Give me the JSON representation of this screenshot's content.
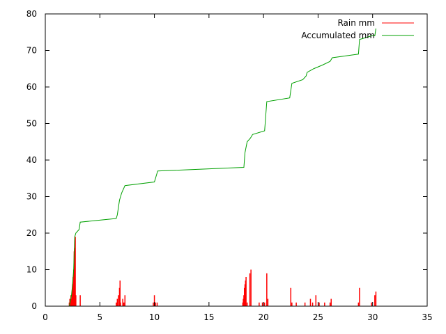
{
  "chart_data": {
    "type": "line",
    "title": "",
    "xlabel": "",
    "ylabel": "",
    "xlim": [
      0,
      35
    ],
    "ylim": [
      0,
      80
    ],
    "x_ticks": [
      0,
      5,
      10,
      15,
      20,
      25,
      30,
      35
    ],
    "y_ticks": [
      0,
      10,
      20,
      30,
      40,
      50,
      60,
      70,
      80
    ],
    "x_tick_labels": [
      "0",
      "5",
      "10",
      "15",
      "20",
      "25",
      "30",
      "35"
    ],
    "y_tick_labels": [
      "0",
      "10",
      "20",
      "30",
      "40",
      "50",
      "60",
      "70",
      "80"
    ],
    "grid": false,
    "legend_position": "top-right",
    "series": [
      {
        "name": "Rain mm",
        "style": "impulses",
        "color": "#ff0000",
        "points": [
          [
            2.2,
            1
          ],
          [
            2.25,
            2
          ],
          [
            2.3,
            1.5
          ],
          [
            2.35,
            3
          ],
          [
            2.4,
            2
          ],
          [
            2.45,
            4
          ],
          [
            2.5,
            6
          ],
          [
            2.55,
            8
          ],
          [
            2.6,
            10
          ],
          [
            2.65,
            15
          ],
          [
            2.7,
            16
          ],
          [
            2.75,
            19
          ],
          [
            2.8,
            3
          ],
          [
            3.2,
            3
          ],
          [
            6.5,
            1
          ],
          [
            6.6,
            2
          ],
          [
            6.7,
            3
          ],
          [
            6.8,
            5
          ],
          [
            6.85,
            7
          ],
          [
            6.9,
            1
          ],
          [
            7.1,
            2
          ],
          [
            7.2,
            1
          ],
          [
            7.3,
            3
          ],
          [
            9.9,
            1
          ],
          [
            10.0,
            3
          ],
          [
            10.1,
            1
          ],
          [
            10.25,
            1
          ],
          [
            18.1,
            1
          ],
          [
            18.15,
            2
          ],
          [
            18.2,
            3
          ],
          [
            18.25,
            5
          ],
          [
            18.3,
            6
          ],
          [
            18.35,
            7
          ],
          [
            18.4,
            8
          ],
          [
            18.5,
            1
          ],
          [
            18.75,
            9
          ],
          [
            18.85,
            10
          ],
          [
            19.6,
            1
          ],
          [
            19.9,
            1
          ],
          [
            20.1,
            1
          ],
          [
            20.3,
            9
          ],
          [
            20.4,
            2
          ],
          [
            22.5,
            5
          ],
          [
            22.6,
            1
          ],
          [
            23.0,
            1
          ],
          [
            23.8,
            1
          ],
          [
            24.3,
            2
          ],
          [
            24.5,
            1
          ],
          [
            24.8,
            3
          ],
          [
            25.1,
            1
          ],
          [
            25.6,
            1
          ],
          [
            26.1,
            1
          ],
          [
            26.2,
            2
          ],
          [
            28.7,
            1
          ],
          [
            28.8,
            5
          ],
          [
            29.9,
            1
          ],
          [
            30.2,
            3
          ],
          [
            30.3,
            4
          ]
        ]
      },
      {
        "name": "Accumulated mm",
        "style": "line",
        "color": "#00a000",
        "points": [
          [
            2.2,
            0
          ],
          [
            2.4,
            3
          ],
          [
            2.5,
            6
          ],
          [
            2.6,
            10
          ],
          [
            2.65,
            15
          ],
          [
            2.7,
            19
          ],
          [
            2.8,
            20
          ],
          [
            3.1,
            21
          ],
          [
            3.2,
            23
          ],
          [
            6.5,
            24
          ],
          [
            6.6,
            25
          ],
          [
            6.8,
            29
          ],
          [
            7.0,
            31
          ],
          [
            7.3,
            33
          ],
          [
            10.0,
            34
          ],
          [
            10.2,
            36
          ],
          [
            10.3,
            37
          ],
          [
            18.2,
            38
          ],
          [
            18.3,
            42
          ],
          [
            18.5,
            45
          ],
          [
            18.8,
            46
          ],
          [
            19.0,
            47
          ],
          [
            20.1,
            48
          ],
          [
            20.3,
            56
          ],
          [
            22.4,
            57
          ],
          [
            22.6,
            61
          ],
          [
            23.6,
            62
          ],
          [
            23.9,
            63
          ],
          [
            24.0,
            64
          ],
          [
            24.6,
            65
          ],
          [
            25.4,
            66
          ],
          [
            26.1,
            67
          ],
          [
            26.3,
            68
          ],
          [
            28.7,
            69
          ],
          [
            28.8,
            73
          ],
          [
            29.9,
            74
          ],
          [
            30.2,
            74
          ],
          [
            30.3,
            76
          ]
        ]
      }
    ]
  }
}
